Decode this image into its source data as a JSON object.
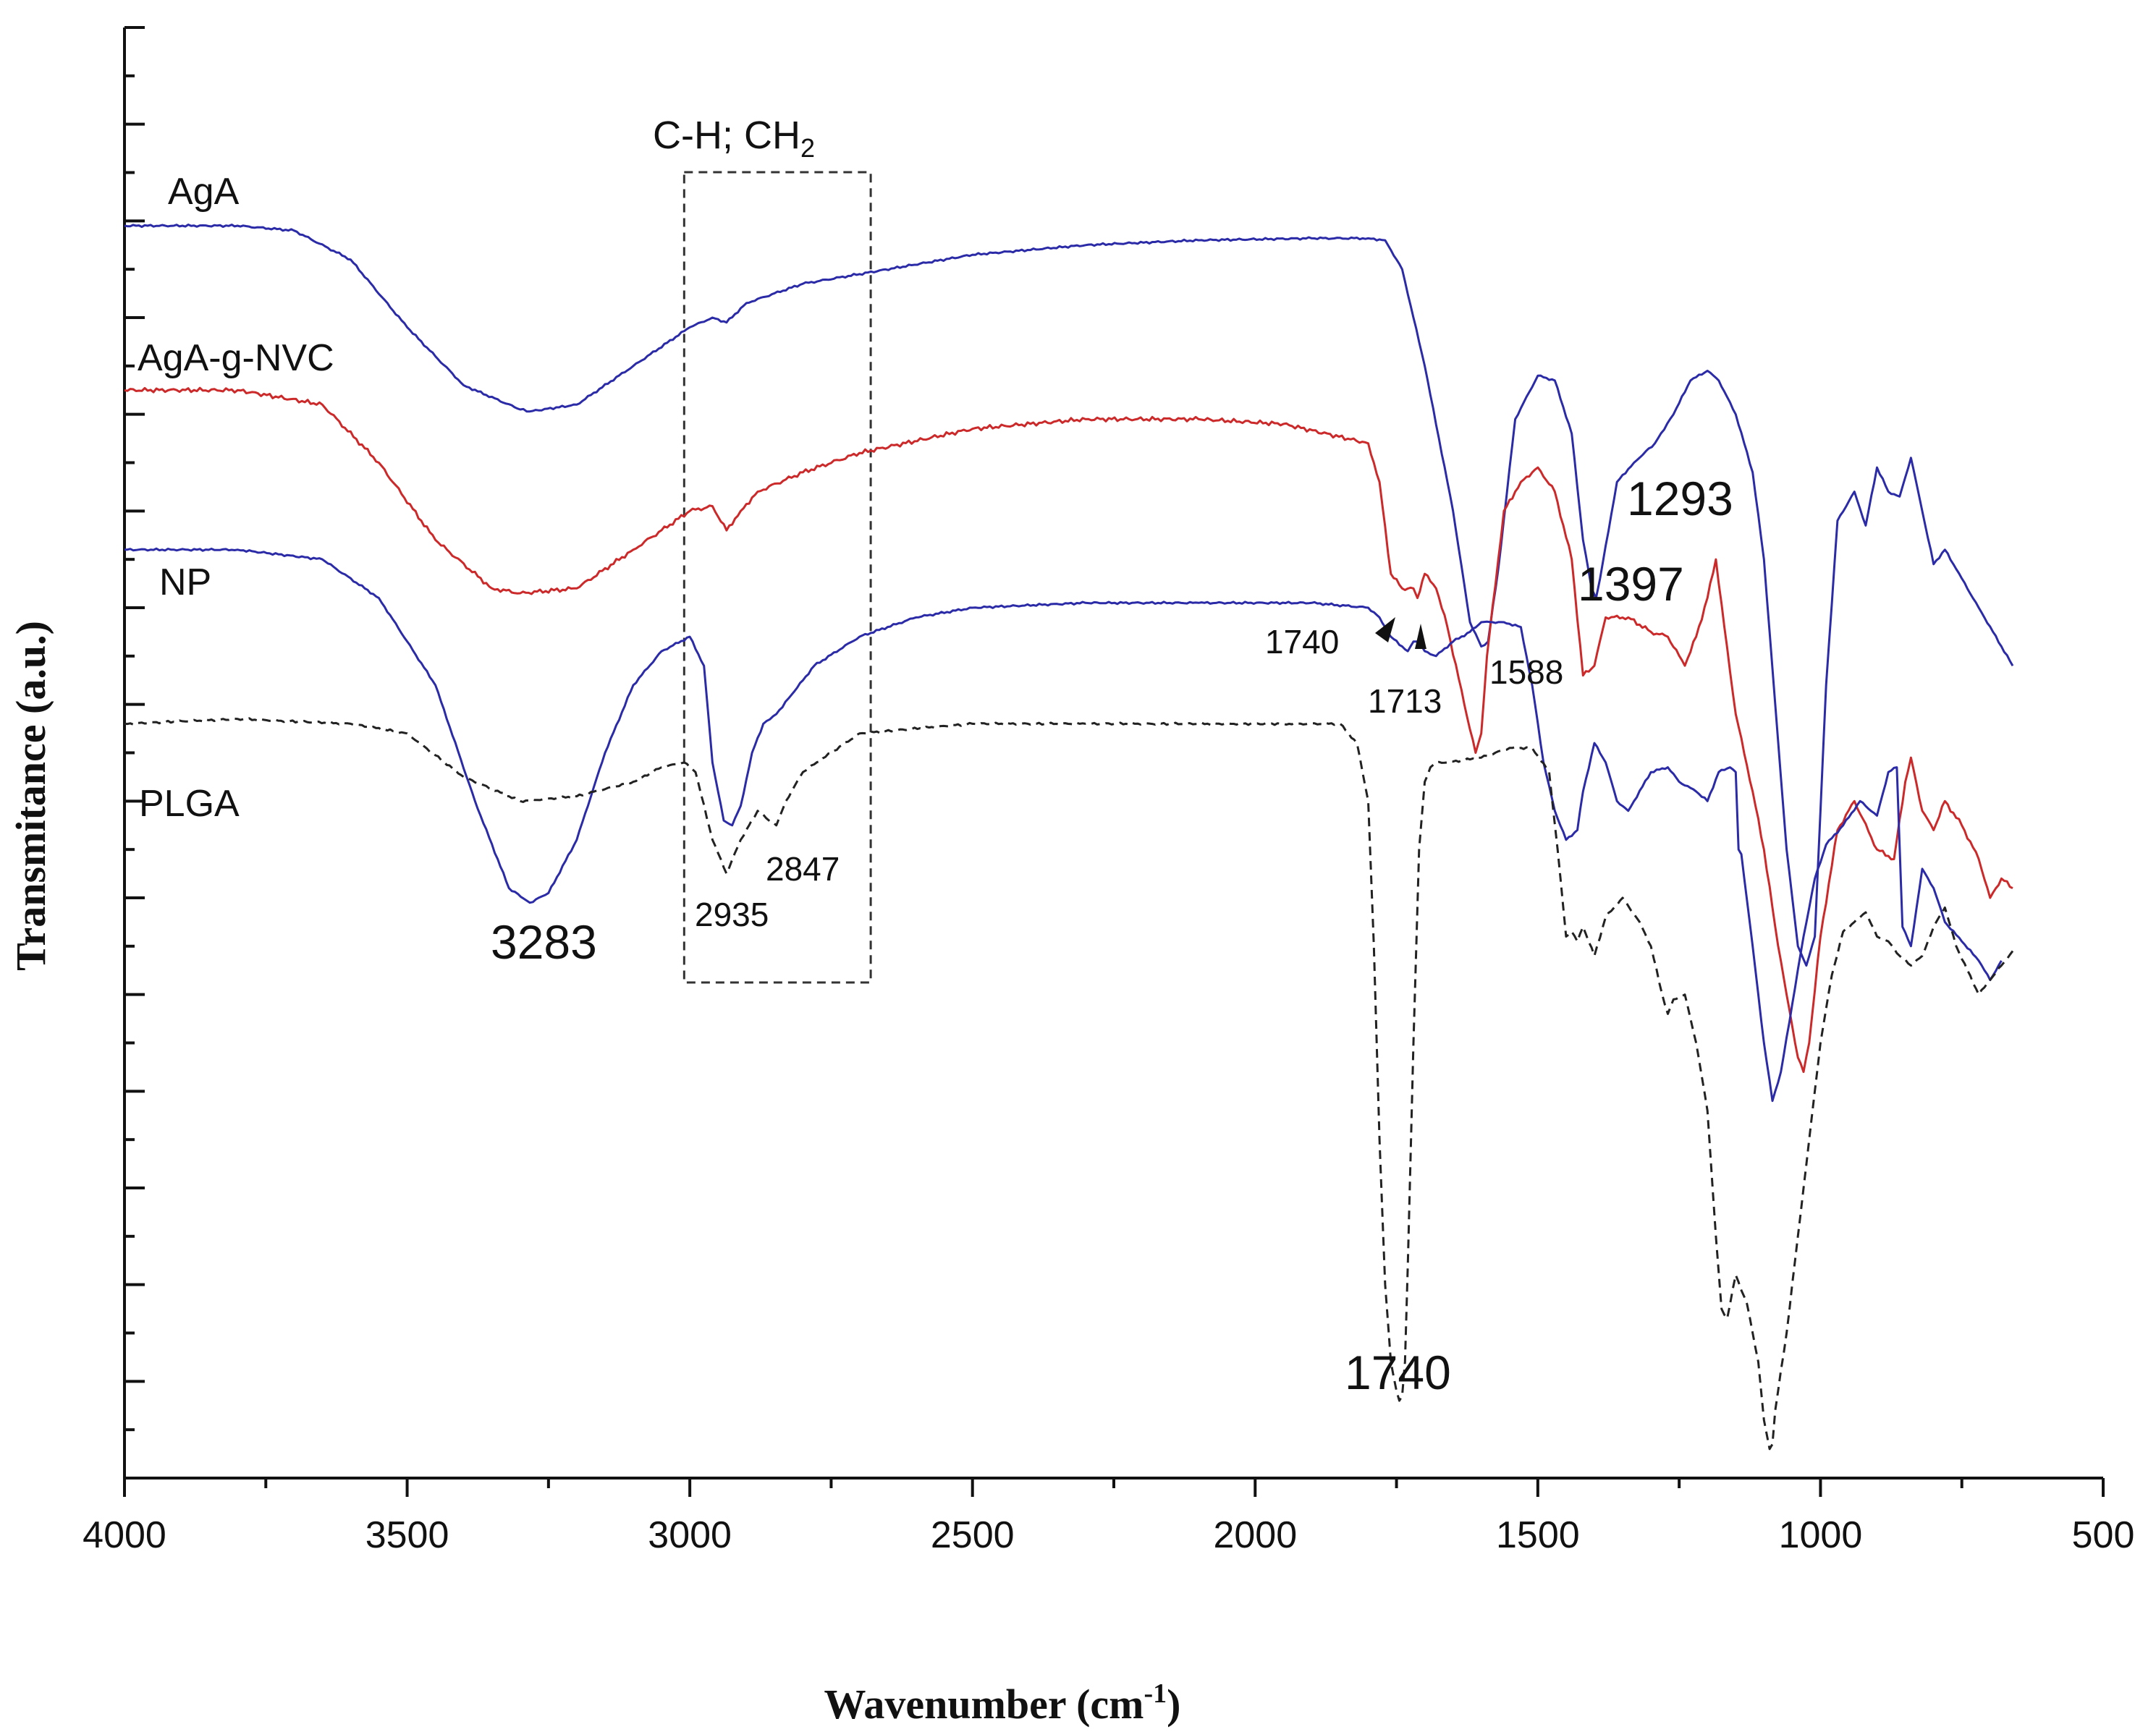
{
  "chart_data": {
    "type": "line",
    "title": "",
    "xlabel": "Wavenumber (cm⁻¹)",
    "ylabel": "Transmitance (a.u.)",
    "xlim": [
      4000,
      500
    ],
    "ylim": [
      0,
      15
    ],
    "x_ticks": [
      4000,
      3500,
      3000,
      2500,
      2000,
      1500,
      1000,
      500
    ],
    "grid": false,
    "series": [
      {
        "name": "AgA",
        "color": "#2b2ba8",
        "dash": "solid",
        "x": [
          4000,
          3800,
          3700,
          3600,
          3500,
          3400,
          3300,
          3283,
          3200,
          3100,
          3000,
          2960,
          2935,
          2900,
          2800,
          2700,
          2500,
          2300,
          2100,
          1900,
          1800,
          1770,
          1740,
          1700,
          1650,
          1620,
          1600,
          1588,
          1570,
          1540,
          1500,
          1470,
          1440,
          1420,
          1405,
          1397,
          1390,
          1360,
          1330,
          1293,
          1260,
          1230,
          1200,
          1180,
          1150,
          1120,
          1100,
          1080,
          1060,
          1040,
          1025,
          1010,
          990,
          970,
          940,
          920,
          900,
          880,
          860,
          840,
          820,
          800,
          780,
          760,
          720,
          680,
          660
        ],
        "y": [
          12.95,
          12.95,
          12.9,
          12.6,
          11.9,
          11.3,
          11.05,
          11.03,
          11.1,
          11.5,
          11.9,
          12.0,
          11.95,
          12.15,
          12.35,
          12.45,
          12.65,
          12.75,
          12.8,
          12.82,
          12.82,
          12.8,
          12.5,
          11.5,
          10.0,
          8.85,
          8.6,
          8.65,
          9.4,
          10.95,
          11.4,
          11.35,
          10.8,
          9.7,
          9.2,
          9.1,
          9.3,
          10.3,
          10.5,
          10.7,
          11.0,
          11.35,
          11.45,
          11.35,
          11.0,
          10.4,
          9.5,
          8.0,
          6.5,
          5.5,
          5.3,
          5.6,
          8.2,
          9.9,
          10.2,
          9.85,
          10.45,
          10.2,
          10.15,
          10.55,
          10.0,
          9.45,
          9.6,
          9.4,
          9.0,
          8.6,
          8.4
        ]
      },
      {
        "name": "AgA-g-NVC",
        "color": "#cc2a2a",
        "dash": "solid",
        "x": [
          4000,
          3800,
          3650,
          3550,
          3450,
          3350,
          3300,
          3200,
          3100,
          3000,
          2960,
          2935,
          2910,
          2880,
          2800,
          2700,
          2500,
          2300,
          2100,
          1950,
          1800,
          1780,
          1760,
          1740,
          1720,
          1713,
          1700,
          1680,
          1660,
          1630,
          1610,
          1600,
          1590,
          1560,
          1530,
          1500,
          1470,
          1440,
          1420,
          1400,
          1380,
          1340,
          1300,
          1270,
          1240,
          1220,
          1200,
          1185,
          1170,
          1150,
          1120,
          1100,
          1080,
          1060,
          1040,
          1030,
          1020,
          1000,
          970,
          940,
          900,
          870,
          850,
          840,
          820,
          800,
          780,
          750,
          720,
          700,
          680,
          660
        ],
        "y": [
          11.25,
          11.25,
          11.1,
          10.5,
          9.7,
          9.2,
          9.15,
          9.2,
          9.6,
          10.0,
          10.05,
          9.8,
          10.0,
          10.2,
          10.4,
          10.6,
          10.85,
          10.95,
          10.95,
          10.9,
          10.7,
          10.3,
          9.35,
          9.2,
          9.2,
          9.1,
          9.35,
          9.2,
          8.8,
          8.0,
          7.5,
          7.7,
          8.5,
          10.0,
          10.3,
          10.45,
          10.2,
          9.5,
          8.3,
          8.4,
          8.9,
          8.9,
          8.75,
          8.7,
          8.4,
          8.7,
          9.1,
          9.5,
          8.8,
          7.9,
          7.1,
          6.5,
          5.7,
          5.0,
          4.35,
          4.2,
          4.5,
          5.6,
          6.7,
          7.0,
          6.5,
          6.4,
          7.2,
          7.45,
          6.9,
          6.7,
          7.0,
          6.75,
          6.4,
          6.0,
          6.2,
          6.1
        ]
      },
      {
        "name": "NP",
        "color": "#2b2ba8",
        "dash": "solid",
        "x": [
          4000,
          3800,
          3650,
          3550,
          3450,
          3380,
          3320,
          3283,
          3250,
          3200,
          3150,
          3100,
          3050,
          3000,
          2975,
          2960,
          2940,
          2925,
          2910,
          2890,
          2870,
          2847,
          2820,
          2780,
          2700,
          2600,
          2500,
          2300,
          2100,
          1900,
          1800,
          1780,
          1760,
          1740,
          1730,
          1720,
          1713,
          1700,
          1680,
          1650,
          1620,
          1600,
          1580,
          1560,
          1530,
          1510,
          1490,
          1470,
          1450,
          1430,
          1420,
          1400,
          1380,
          1360,
          1340,
          1330,
          1300,
          1270,
          1250,
          1220,
          1200,
          1180,
          1160,
          1150,
          1145,
          1140,
          1120,
          1100,
          1085,
          1070,
          1050,
          1030,
          1010,
          990,
          960,
          930,
          900,
          880,
          865,
          855,
          840,
          820,
          800,
          780,
          750,
          720,
          700,
          680
        ],
        "y": [
          9.6,
          9.6,
          9.5,
          9.1,
          8.2,
          7.0,
          6.1,
          5.95,
          6.05,
          6.6,
          7.5,
          8.2,
          8.55,
          8.7,
          8.4,
          7.4,
          6.8,
          6.75,
          6.95,
          7.5,
          7.8,
          7.9,
          8.1,
          8.4,
          8.7,
          8.9,
          9.0,
          9.05,
          9.05,
          9.05,
          9.0,
          8.9,
          8.7,
          8.6,
          8.55,
          8.65,
          8.65,
          8.55,
          8.5,
          8.65,
          8.75,
          8.85,
          8.85,
          8.85,
          8.8,
          8.2,
          7.4,
          6.9,
          6.6,
          6.7,
          7.1,
          7.6,
          7.4,
          7.0,
          6.9,
          7.0,
          7.3,
          7.35,
          7.2,
          7.1,
          7.0,
          7.3,
          7.35,
          7.3,
          6.5,
          6.45,
          5.5,
          4.5,
          3.9,
          4.2,
          4.9,
          5.6,
          6.2,
          6.55,
          6.75,
          7.0,
          6.85,
          7.3,
          7.35,
          5.7,
          5.5,
          6.3,
          6.1,
          5.75,
          5.55,
          5.35,
          5.15,
          5.35
        ]
      },
      {
        "name": "PLGA",
        "color": "#222222",
        "dash": "dashed",
        "x": [
          4000,
          3800,
          3600,
          3500,
          3400,
          3300,
          3200,
          3100,
          3050,
          3010,
          2990,
          2960,
          2935,
          2910,
          2880,
          2860,
          2847,
          2830,
          2800,
          2700,
          2500,
          2300,
          2100,
          1950,
          1850,
          1820,
          1800,
          1790,
          1780,
          1770,
          1760,
          1750,
          1745,
          1740,
          1735,
          1730,
          1720,
          1710,
          1700,
          1690,
          1680,
          1660,
          1600,
          1550,
          1510,
          1480,
          1465,
          1455,
          1450,
          1440,
          1430,
          1420,
          1400,
          1380,
          1350,
          1320,
          1300,
          1280,
          1270,
          1260,
          1240,
          1220,
          1200,
          1185,
          1175,
          1165,
          1150,
          1130,
          1110,
          1100,
          1090,
          1085,
          1080,
          1060,
          1040,
          1020,
          1000,
          980,
          960,
          940,
          920,
          900,
          880,
          860,
          840,
          820,
          800,
          780,
          760,
          740,
          720,
          700,
          680,
          660
        ],
        "y": [
          7.8,
          7.85,
          7.8,
          7.7,
          7.25,
          7.0,
          7.05,
          7.2,
          7.35,
          7.4,
          7.3,
          6.6,
          6.25,
          6.6,
          6.9,
          6.8,
          6.75,
          7.0,
          7.3,
          7.7,
          7.8,
          7.8,
          7.8,
          7.8,
          7.8,
          7.6,
          7.0,
          5.5,
          3.5,
          2.0,
          1.2,
          0.9,
          0.8,
          0.85,
          1.2,
          2.2,
          4.5,
          6.5,
          7.2,
          7.35,
          7.4,
          7.4,
          7.45,
          7.55,
          7.55,
          7.3,
          6.5,
          5.9,
          5.6,
          5.65,
          5.55,
          5.7,
          5.4,
          5.8,
          6.0,
          5.75,
          5.5,
          5.0,
          4.8,
          4.95,
          5.0,
          4.5,
          3.8,
          2.5,
          1.75,
          1.65,
          2.1,
          1.8,
          1.2,
          0.6,
          0.3,
          0.35,
          0.7,
          1.5,
          2.5,
          3.5,
          4.5,
          5.2,
          5.65,
          5.75,
          5.85,
          5.6,
          5.55,
          5.4,
          5.3,
          5.4,
          5.7,
          5.9,
          5.5,
          5.25,
          5.0,
          5.15,
          5.3,
          5.45
        ]
      }
    ],
    "series_labels": [
      "AgA",
      "AgA-g-NVC",
      "NP",
      "PLGA"
    ],
    "annotations": {
      "region_box": {
        "title": "C-H; CH",
        "subscript": "2",
        "x_from": 3010,
        "x_to": 2680
      },
      "peaks": [
        {
          "text": "3283",
          "x": 3283
        },
        {
          "text": "2935",
          "x": 2935
        },
        {
          "text": "2847",
          "x": 2847
        },
        {
          "text": "1740",
          "x": 1740
        },
        {
          "text": "1713",
          "x": 1713
        },
        {
          "text": "1588",
          "x": 1588
        },
        {
          "text": "1397",
          "x": 1397
        },
        {
          "text": "1293",
          "x": 1293
        },
        {
          "text": "1740",
          "x": 1740
        }
      ]
    }
  }
}
